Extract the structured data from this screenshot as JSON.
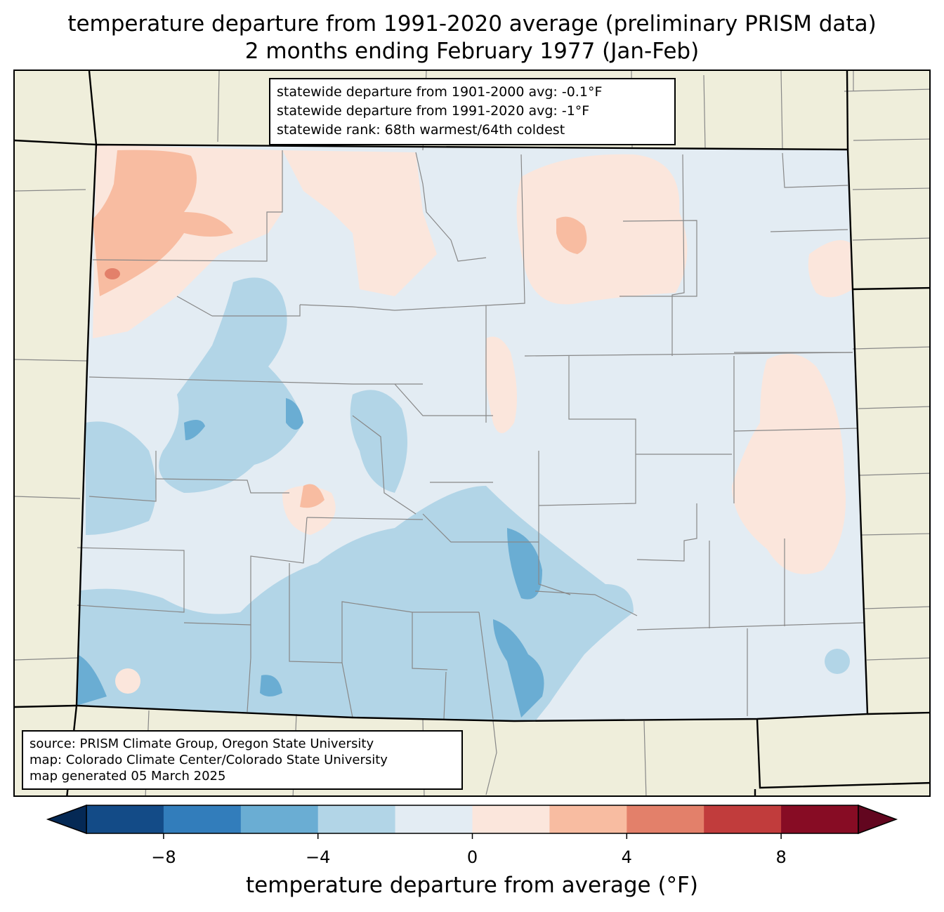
{
  "title": {
    "line1": "temperature departure from 1991-2020 average (preliminary PRISM data)",
    "line2": "2 months ending February 1977 (Jan-Feb)"
  },
  "stats": {
    "line1": "statewide departure from 1901-2000 avg: -0.1°F",
    "line2": "statewide departure from 1991-2020 avg: -1°F",
    "line3": "statewide rank: 68th warmest/64th coldest"
  },
  "source": {
    "line1": "source: PRISM Climate Group, Oregon State University",
    "line2": "map: Colorado Climate Center/Colorado State University",
    "line3": "map generated 05 March 2025"
  },
  "colorbar": {
    "label": "temperature departure from average (°F)",
    "ticks": [
      "−8",
      "−4",
      "0",
      "4",
      "8"
    ],
    "tick_values": [
      -8,
      -4,
      0,
      4,
      8
    ],
    "range": [
      -10,
      10
    ],
    "bins": [
      {
        "min": -10,
        "max": -8,
        "color": "#134b87"
      },
      {
        "min": -8,
        "max": -6,
        "color": "#327dbb"
      },
      {
        "min": -6,
        "max": -4,
        "color": "#6aadd3"
      },
      {
        "min": -4,
        "max": -2,
        "color": "#b2d5e7"
      },
      {
        "min": -2,
        "max": 0,
        "color": "#e3ecf3"
      },
      {
        "min": 0,
        "max": 2,
        "color": "#fbe6dc"
      },
      {
        "min": 2,
        "max": 4,
        "color": "#f8bca1"
      },
      {
        "min": 4,
        "max": 6,
        "color": "#e3806a"
      },
      {
        "min": 6,
        "max": 8,
        "color": "#c13c3c"
      },
      {
        "min": 8,
        "max": 10,
        "color": "#870c24"
      }
    ],
    "under_color": "#052955",
    "over_color": "#62061f"
  },
  "colors": {
    "land_outside": "#efeedb",
    "state_fill": "#e3ecf3",
    "state_border": "#000000",
    "county_border": "#888888"
  }
}
